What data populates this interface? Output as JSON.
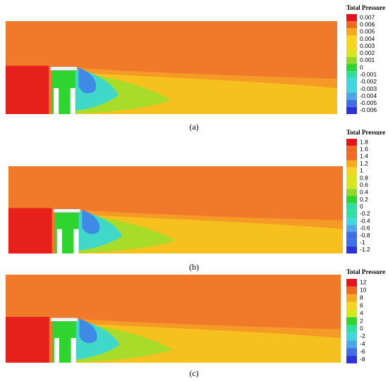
{
  "panels": [
    {
      "caption": "(a)",
      "legend": {
        "title": "Total Pressure",
        "labels": [
          "0.007",
          "0.006",
          "0.005",
          "0.004",
          "0.003",
          "0.002",
          "0.001",
          "0",
          "-0.001",
          "-0.002",
          "-0.003",
          "-0.004",
          "-0.005",
          "-0.006"
        ]
      }
    },
    {
      "caption": "(b)",
      "legend": {
        "title": "Total Pressure",
        "labels": [
          "1.8",
          "1.6",
          "1.4",
          "1.2",
          "1",
          "0.8",
          "0.6",
          "0.4",
          "0.2",
          "0",
          "-0.2",
          "-0.4",
          "-0.6",
          "-0.8",
          "-1",
          "-1.2"
        ]
      }
    },
    {
      "caption": "(c)",
      "legend": {
        "title": "Total Pressure",
        "labels": [
          "12",
          "10",
          "8",
          "6",
          "4",
          "2",
          "0",
          "-2",
          "-4",
          "-6",
          "-8"
        ]
      }
    }
  ]
}
